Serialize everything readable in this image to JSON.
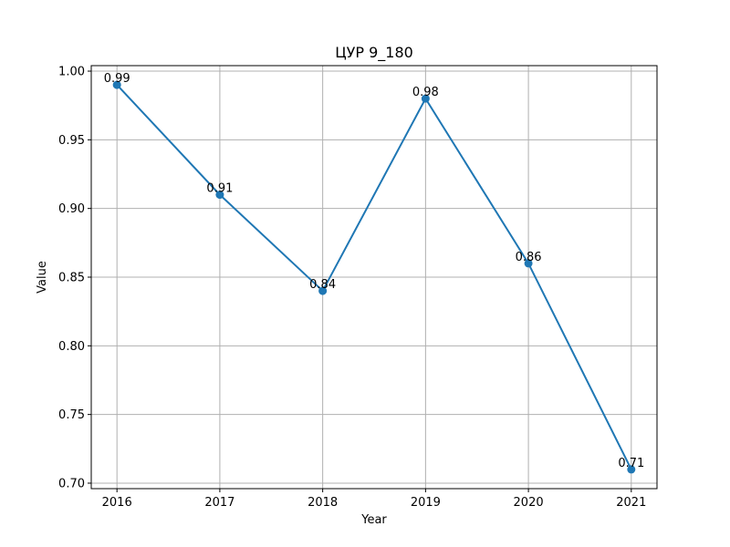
{
  "chart_data": {
    "type": "line",
    "title": "ЦУР 9_180",
    "xlabel": "Year",
    "ylabel": "Value",
    "x": [
      2016,
      2017,
      2018,
      2019,
      2020,
      2021
    ],
    "series": [
      {
        "values": [
          0.99,
          0.91,
          0.84,
          0.98,
          0.86,
          0.71
        ],
        "data_labels": [
          "0.99",
          "0.91",
          "0.84",
          "0.98",
          "0.86",
          "0.71"
        ],
        "color": "#1f77b4",
        "marker": "circle"
      }
    ],
    "xlim": [
      2015.75,
      2021.25
    ],
    "ylim": [
      0.696,
      1.004
    ],
    "yticks": [
      0.7,
      0.75,
      0.8,
      0.85,
      0.9,
      0.95,
      1.0
    ],
    "ytick_labels": [
      "0.70",
      "0.75",
      "0.80",
      "0.85",
      "0.90",
      "0.95",
      "1.00"
    ],
    "xtick_labels": [
      "2016",
      "2017",
      "2018",
      "2019",
      "2020",
      "2021"
    ],
    "grid": true,
    "legend": "none"
  }
}
